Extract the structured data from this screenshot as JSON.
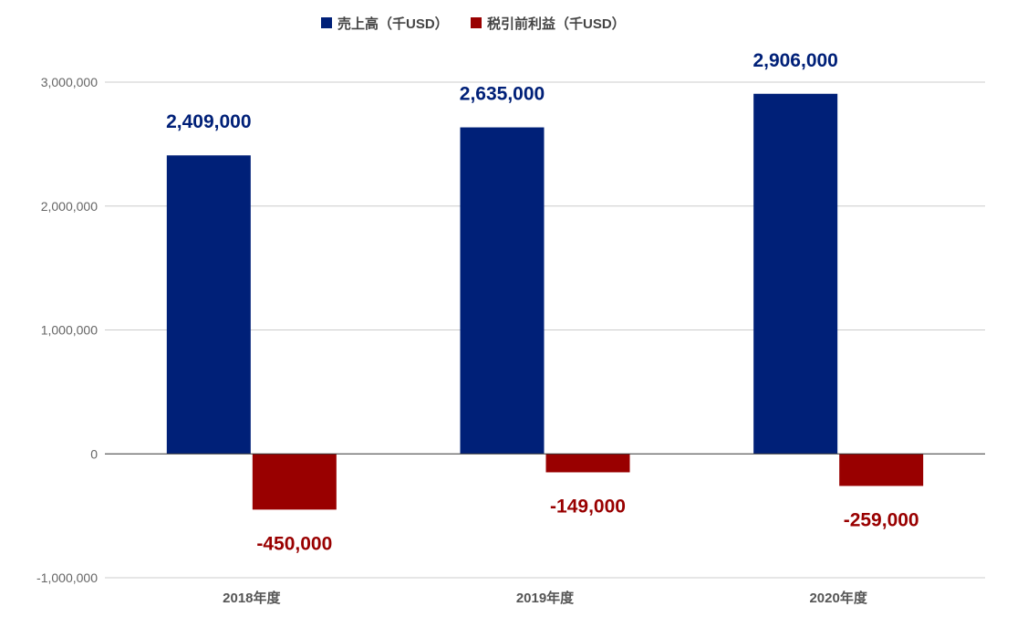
{
  "chart_data": {
    "type": "bar",
    "categories": [
      "2018年度",
      "2019年度",
      "2020年度"
    ],
    "series": [
      {
        "name": "売上高（千USD）",
        "values": [
          2409000,
          2635000,
          2906000
        ],
        "labels": [
          "2,409,000",
          "2,635,000",
          "2,906,000"
        ],
        "color": "#002078"
      },
      {
        "name": "税引前利益（千USD）",
        "values": [
          -450000,
          -149000,
          -259000
        ],
        "labels": [
          "-450,000",
          "-149,000",
          "-259,000"
        ],
        "color": "#990000"
      }
    ],
    "yticks": [
      3000000,
      2000000,
      1000000,
      0,
      -1000000
    ],
    "ytick_labels": [
      "3,000,000",
      "2,000,000",
      "1,000,000",
      "0",
      "-1,000,000"
    ],
    "ylim": [
      -1000000,
      3000000
    ],
    "grid": true,
    "legend": "top-center"
  }
}
